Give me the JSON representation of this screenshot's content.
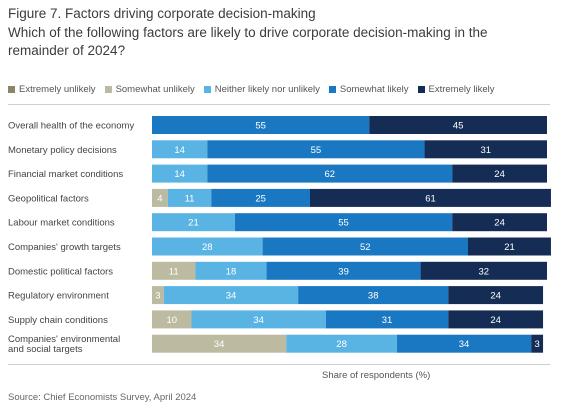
{
  "figure": {
    "title": "Figure 7. Factors driving corporate decision-making",
    "subtitle": "Which of the following factors are likely to drive corporate decision-making in the remainder of 2024?",
    "source": "Source: Chief Economists Survey, April 2024"
  },
  "chart_data": {
    "type": "bar",
    "orientation": "horizontal",
    "stacked": true,
    "xlabel": "Share of respondents (%)",
    "xlim": [
      0,
      100
    ],
    "grid": false,
    "legend_position": "top-left",
    "categories": [
      [
        "Overall health of the economy"
      ],
      [
        "Monetary policy decisions"
      ],
      [
        "Financial market conditions"
      ],
      [
        "Geopolitical factors"
      ],
      [
        "Labour market conditions"
      ],
      [
        "Companies' growth targets"
      ],
      [
        "Domestic political factors"
      ],
      [
        "Regulatory environment"
      ],
      [
        "Supply chain conditions"
      ],
      [
        "Companies' environmental",
        "and social targets"
      ]
    ],
    "series": [
      {
        "name": "Extremely unlikely",
        "color": "#8c8466",
        "values": [
          0,
          0,
          0,
          0,
          0,
          0,
          0,
          0,
          0,
          0
        ]
      },
      {
        "name": "Somewhat unlikely",
        "color": "#bcbaa0",
        "values": [
          0,
          0,
          0,
          4,
          0,
          0,
          11,
          3,
          10,
          34
        ]
      },
      {
        "name": "Neither likely nor unlikely",
        "color": "#5ab4e3",
        "values": [
          0,
          14,
          14,
          11,
          21,
          28,
          18,
          34,
          34,
          28
        ]
      },
      {
        "name": "Somewhat likely",
        "color": "#1a78c2",
        "values": [
          55,
          55,
          62,
          25,
          55,
          52,
          39,
          38,
          31,
          34
        ]
      },
      {
        "name": "Extremely likely",
        "color": "#152c55",
        "values": [
          45,
          31,
          24,
          61,
          24,
          21,
          32,
          24,
          24,
          3
        ]
      }
    ],
    "label_colors": {
      "Extremely unlikely": "#ffffff",
      "Somewhat unlikely": "#ffffff",
      "Neither likely nor unlikely": "#ffffff",
      "Somewhat likely": "#ffffff",
      "Extremely likely": "#ffffff"
    }
  }
}
